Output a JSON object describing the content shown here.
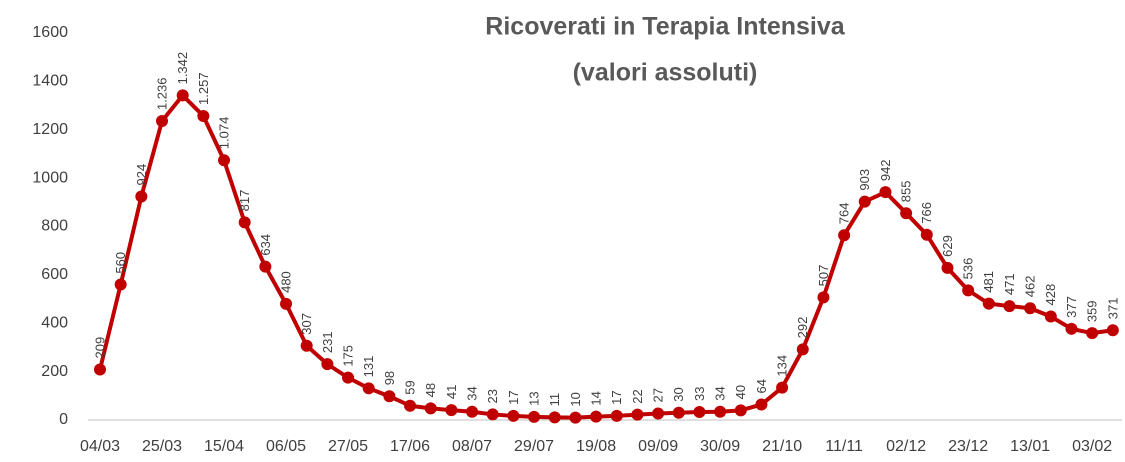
{
  "chart_data": {
    "type": "line",
    "title": "Ricoverati in Terapia Intensiva",
    "subtitle": "(valori assoluti)",
    "categories": [
      "04/03",
      null,
      null,
      "25/03",
      null,
      null,
      "15/04",
      null,
      null,
      "06/05",
      null,
      null,
      "27/05",
      null,
      null,
      "17/06",
      null,
      null,
      "08/07",
      null,
      null,
      "29/07",
      null,
      null,
      "19/08",
      null,
      null,
      "09/09",
      null,
      null,
      "30/09",
      null,
      null,
      "21/10",
      null,
      null,
      "11/11",
      null,
      null,
      "02/12",
      null,
      null,
      "23/12",
      null,
      null,
      "13/01",
      null,
      null,
      "03/02",
      null
    ],
    "series": [
      {
        "name": "Ricoverati in Terapia Intensiva",
        "color": "#c00000",
        "values": [
          209,
          560,
          924,
          1236,
          1342,
          1257,
          1074,
          817,
          634,
          480,
          307,
          231,
          175,
          131,
          98,
          59,
          48,
          41,
          34,
          23,
          17,
          13,
          11,
          10,
          14,
          17,
          22,
          27,
          30,
          33,
          34,
          40,
          64,
          134,
          292,
          507,
          764,
          903,
          942,
          855,
          766,
          629,
          536,
          481,
          471,
          462,
          428,
          377,
          359,
          371
        ],
        "value_labels": [
          "209",
          "560",
          "924",
          "1.236",
          "1.342",
          "1.257",
          "1.074",
          "817",
          "634",
          "480",
          "307",
          "231",
          "175",
          "131",
          "98",
          "59",
          "48",
          "41",
          "34",
          "23",
          "17",
          "13",
          "11",
          "10",
          "14",
          "17",
          "22",
          "27",
          "30",
          "33",
          "34",
          "40",
          "64",
          "134",
          "292",
          "507",
          "764",
          "903",
          "942",
          "855",
          "766",
          "629",
          "536",
          "481",
          "471",
          "462",
          "428",
          "377",
          "359",
          "371"
        ]
      }
    ],
    "ylim": [
      0,
      1600
    ],
    "yticks": [
      0,
      200,
      400,
      600,
      800,
      1000,
      1200,
      1400,
      1600
    ],
    "grid": false
  }
}
